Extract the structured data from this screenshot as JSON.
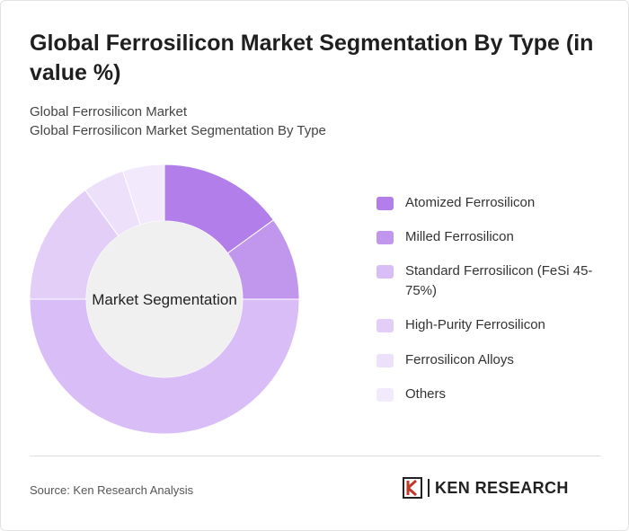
{
  "header": {
    "title": "Global Ferrosilicon Market Segmentation By Type (in value %)",
    "subtitle_line1": "Global Ferrosilicon Market",
    "subtitle_line2": "Global Ferrosilicon Market Segmentation By Type"
  },
  "chart_data": {
    "type": "pie",
    "center_label": "Market Segmentation",
    "categories": [
      "Atomized Ferrosilicon",
      "Milled Ferrosilicon",
      "Standard Ferrosilicon (FeSi 45-75%)",
      "High-Purity Ferrosilicon",
      "Ferrosilicon Alloys",
      "Others"
    ],
    "values": [
      15,
      10,
      50,
      15,
      5,
      5
    ],
    "colors": [
      "#b27fea",
      "#c197ee",
      "#d8bdf6",
      "#e3cef8",
      "#ece0fb",
      "#f2eafc"
    ],
    "legend_position": "right"
  },
  "footer": {
    "source": "Source: Ken Research Analysis",
    "logo_text": "KEN RESEARCH"
  }
}
